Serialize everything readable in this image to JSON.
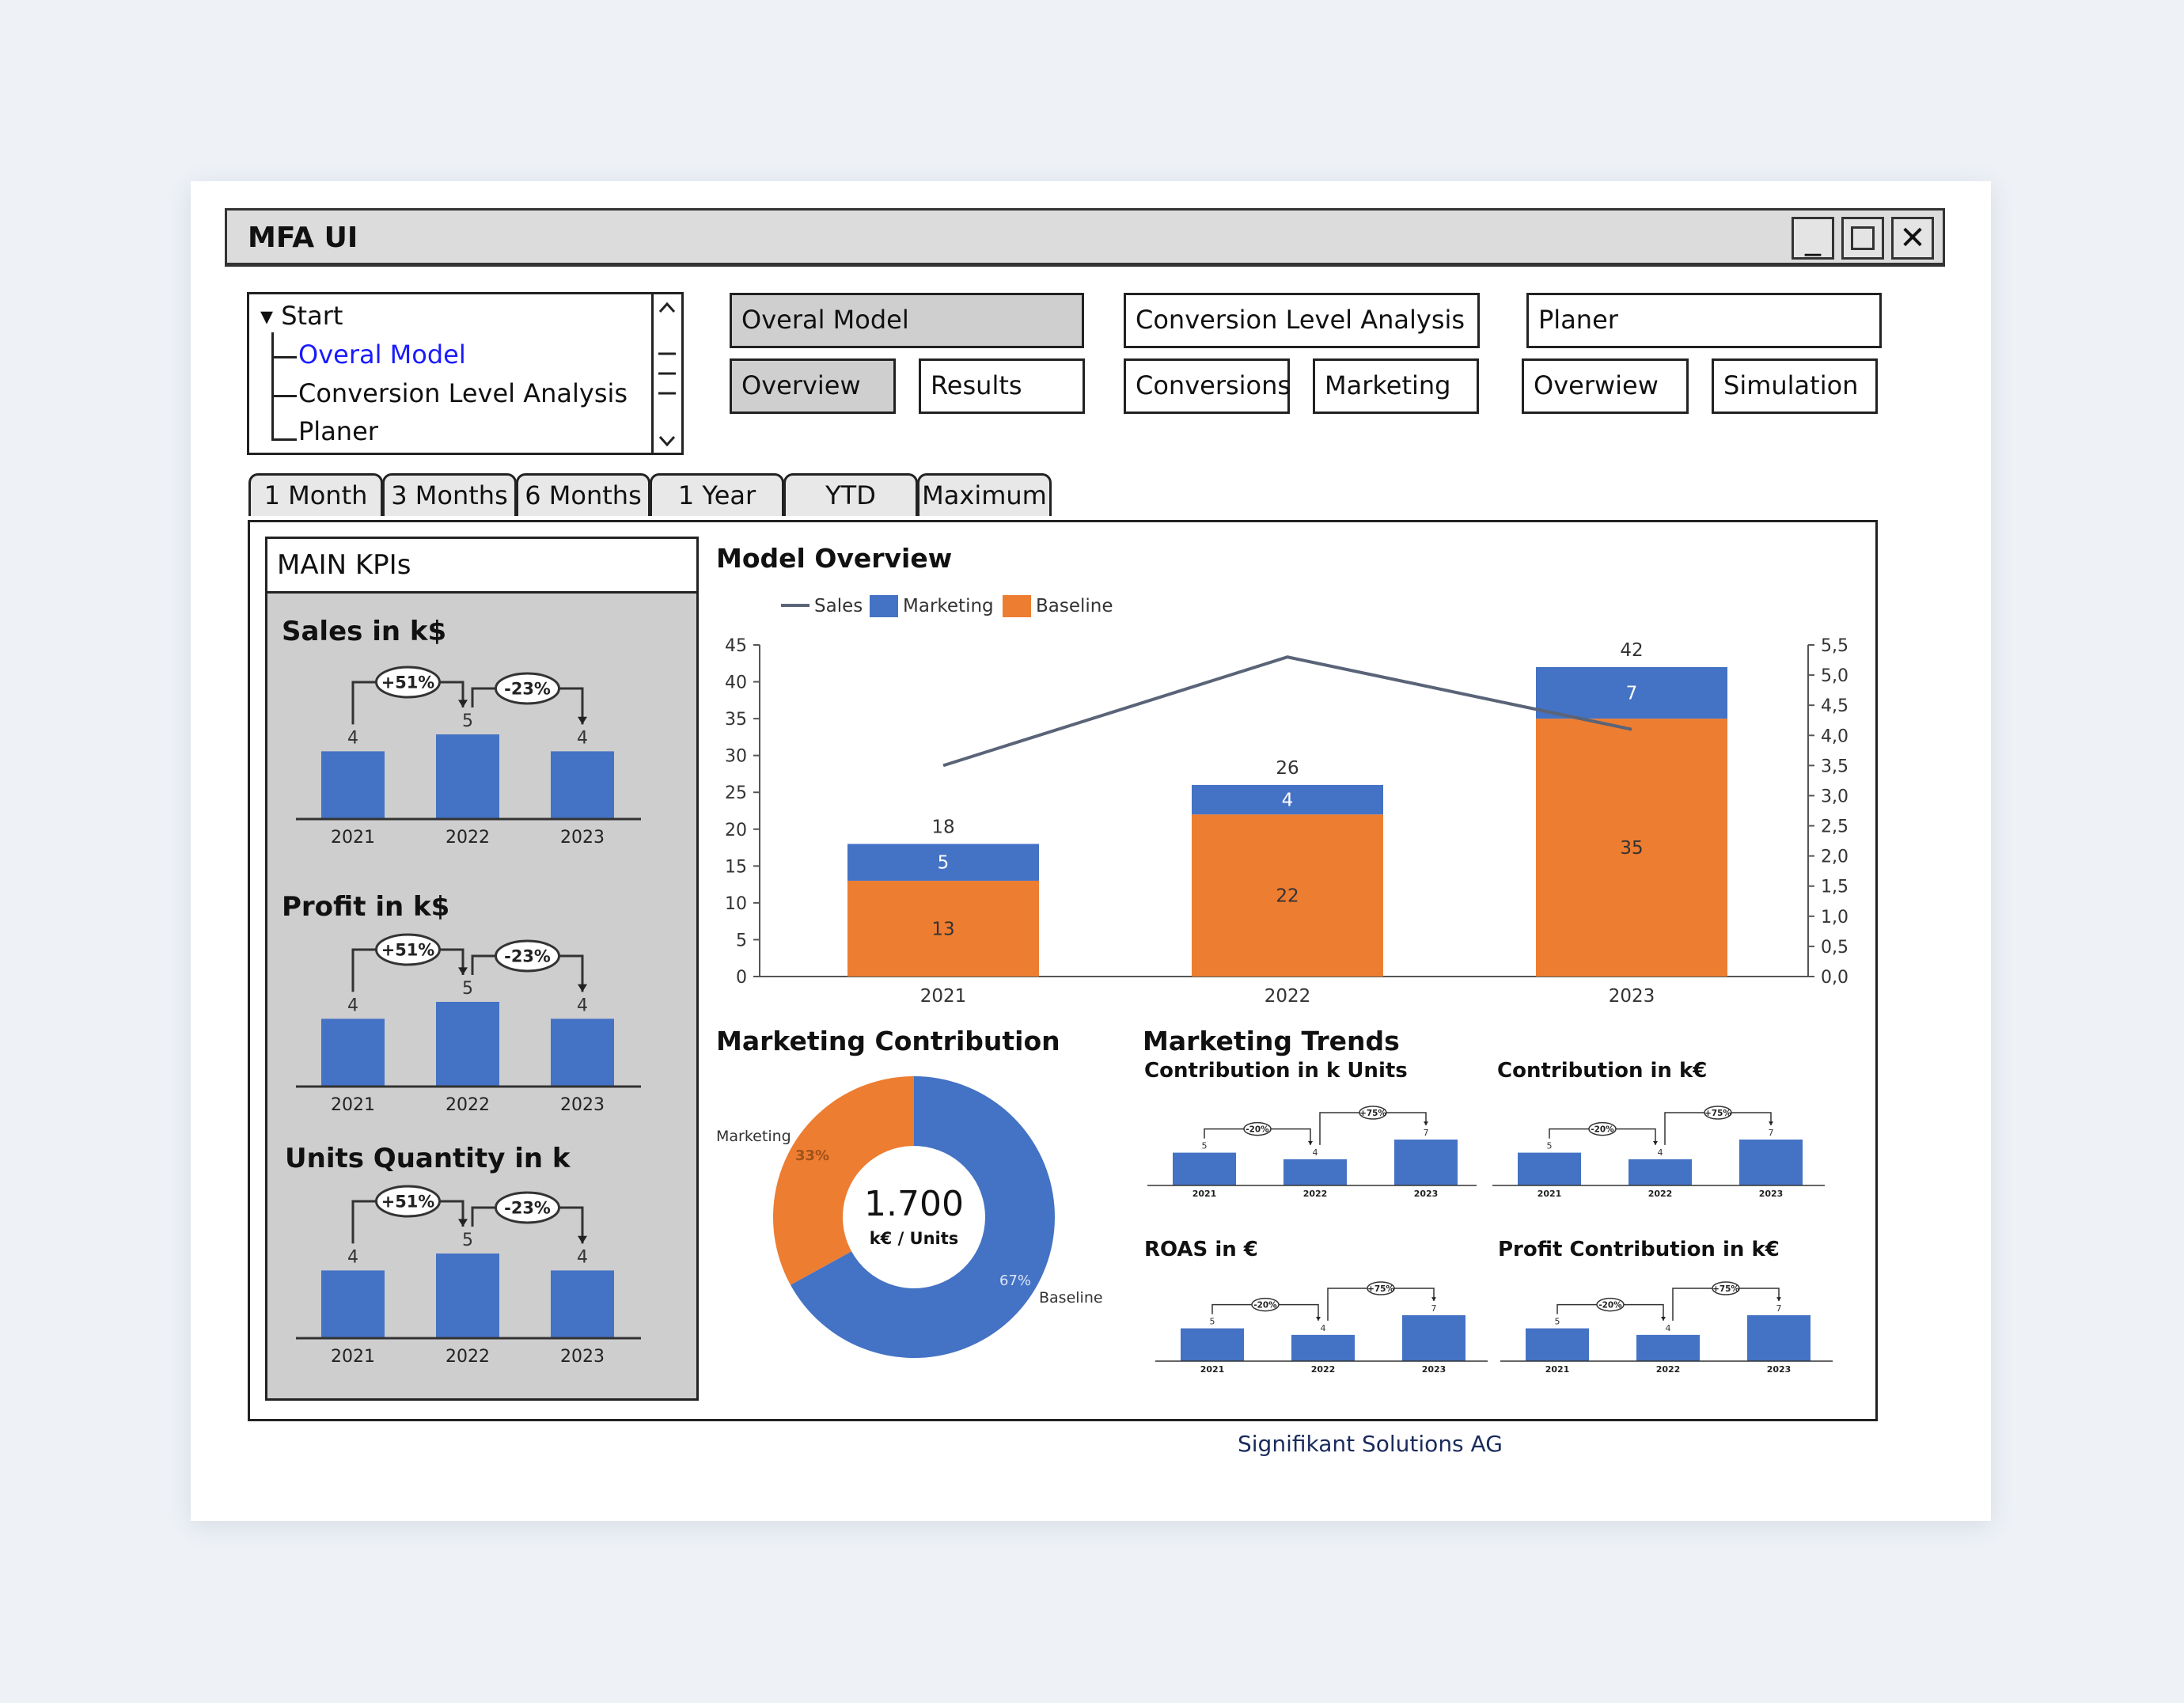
{
  "window": {
    "title": "MFA UI"
  },
  "tree": {
    "root": "Start",
    "items": [
      "Overal Model",
      "Conversion Level Analysis",
      "Planer"
    ],
    "selected_index": 0
  },
  "modules": [
    {
      "title": "Overal Model",
      "active": true,
      "subs": [
        {
          "label": "Overview",
          "active": true
        },
        {
          "label": "Results",
          "active": false
        }
      ]
    },
    {
      "title": "Conversion Level Analysis",
      "active": false,
      "subs": [
        {
          "label": "Conversions",
          "active": false
        },
        {
          "label": "Marketing",
          "active": false
        }
      ]
    },
    {
      "title": "Planer",
      "active": false,
      "subs": [
        {
          "label": "Overwiew",
          "active": false
        },
        {
          "label": "Simulation",
          "active": false
        }
      ]
    }
  ],
  "time_tabs": [
    "1 Month",
    "3 Months",
    "6 Months",
    "1 Year",
    "YTD",
    "Maximum"
  ],
  "kpis": {
    "header": "MAIN KPIs",
    "cards": [
      {
        "title": "Sales in k$",
        "years": [
          "2021",
          "2022",
          "2023"
        ],
        "values": [
          4,
          5,
          4
        ],
        "changes": [
          "+51%",
          "-23%"
        ]
      },
      {
        "title": "Profit in k$",
        "years": [
          "2021",
          "2022",
          "2023"
        ],
        "values": [
          4,
          5,
          4
        ],
        "changes": [
          "+51%",
          "-23%"
        ]
      },
      {
        "title": "Units Quantity in k",
        "years": [
          "2021",
          "2022",
          "2023"
        ],
        "values": [
          4,
          5,
          4
        ],
        "changes": [
          "+51%",
          "-23%"
        ]
      }
    ]
  },
  "model_overview": {
    "title": "Model Overview",
    "colors": {
      "sales": "#5a6478",
      "marketing": "#4472c4",
      "baseline": "#ed7d31"
    },
    "chart_data": {
      "type": "bar",
      "categories": [
        "2021",
        "2022",
        "2023"
      ],
      "series": [
        {
          "name": "Baseline",
          "values": [
            13,
            22,
            35
          ]
        },
        {
          "name": "Marketing",
          "values": [
            5,
            4,
            7
          ]
        },
        {
          "name": "Sales",
          "values": [
            3.5,
            5.3,
            4.1
          ],
          "kind": "line",
          "axis": "right"
        }
      ],
      "totals": [
        18,
        26,
        42
      ],
      "ylim": [
        0,
        45
      ],
      "yticks": [
        "0",
        "5",
        "10",
        "15",
        "20",
        "25",
        "30",
        "35",
        "40",
        "45"
      ],
      "y2lim": [
        0,
        5.5
      ],
      "y2ticks": [
        "0,0",
        "0,5",
        "1,0",
        "1,5",
        "2,0",
        "2,5",
        "3,0",
        "3,5",
        "4,0",
        "4,5",
        "5,0",
        "5,5"
      ],
      "legend": [
        "Sales",
        "Marketing",
        "Baseline"
      ],
      "legend_position": "top-left"
    }
  },
  "marketing_contribution": {
    "title": "Marketing Contribution",
    "center_value": "1.700",
    "center_unit": "k€ / Units",
    "chart_data": {
      "type": "pie",
      "labels": [
        "Marketing",
        "Baseline"
      ],
      "values": [
        33,
        67
      ],
      "pct_labels": [
        "33%",
        "67%"
      ]
    }
  },
  "marketing_trends": {
    "title": "Marketing Trends",
    "charts": [
      {
        "title": "Contribution in k Units",
        "years": [
          "2021",
          "2022",
          "2023"
        ],
        "values": [
          5,
          4,
          7
        ],
        "changes": [
          "-20%",
          "+75%"
        ]
      },
      {
        "title": "Contribution in k€",
        "years": [
          "2021",
          "2022",
          "2023"
        ],
        "values": [
          5,
          4,
          7
        ],
        "changes": [
          "-20%",
          "+75%"
        ]
      },
      {
        "title": "ROAS in €",
        "years": [
          "2021",
          "2022",
          "2023"
        ],
        "values": [
          5,
          4,
          7
        ],
        "changes": [
          "-20%",
          "+75%"
        ]
      },
      {
        "title": "Profit Contribution in k€",
        "years": [
          "2021",
          "2022",
          "2023"
        ],
        "values": [
          5,
          4,
          7
        ],
        "changes": [
          "-20%",
          "+75%"
        ]
      }
    ]
  },
  "footer": "Signifikant Solutions AG"
}
